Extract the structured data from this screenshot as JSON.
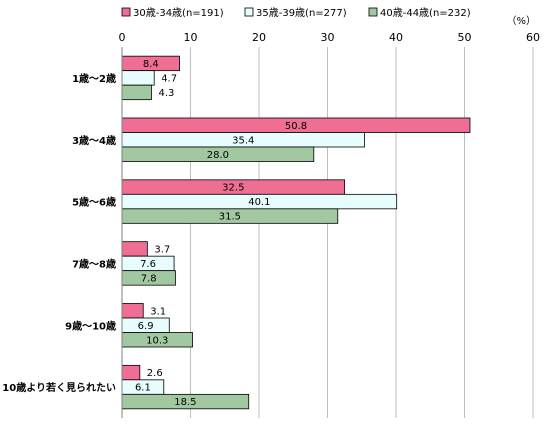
{
  "chart_data": {
    "type": "bar",
    "orientation": "horizontal",
    "unit_label": "（%）",
    "xlim": [
      0,
      60
    ],
    "x_ticks": [
      0,
      10,
      20,
      30,
      40,
      50,
      60
    ],
    "grid": "vertical",
    "legend_position": "top",
    "categories": [
      "1歳～2歳",
      "3歳～4歳",
      "5歳～6歳",
      "7歳～8歳",
      "9歳～10歳",
      "10歳より若く見られたい"
    ],
    "series": [
      {
        "name": "30歳-34歳(n=191)",
        "color": "#ee6e94",
        "values": [
          8.4,
          50.8,
          32.5,
          3.7,
          3.1,
          2.6
        ],
        "labels": [
          "8.4",
          "50.8",
          "32.5",
          "3.7",
          "3.1",
          "2.6"
        ]
      },
      {
        "name": "35歳-39歳(n=277)",
        "color": "#e8fdfd",
        "values": [
          4.7,
          35.4,
          40.1,
          7.6,
          6.9,
          6.1
        ],
        "labels": [
          "4.7",
          "35.4",
          "40.1",
          "7.6",
          "6.9",
          "6.1"
        ]
      },
      {
        "name": "40歳-44歳(n=232)",
        "color": "#a2c8a2",
        "values": [
          4.3,
          28.0,
          31.5,
          7.8,
          10.3,
          18.5
        ],
        "labels": [
          "4.3",
          "28.0",
          "31.5",
          "7.8",
          "10.3",
          "18.5"
        ]
      }
    ]
  }
}
